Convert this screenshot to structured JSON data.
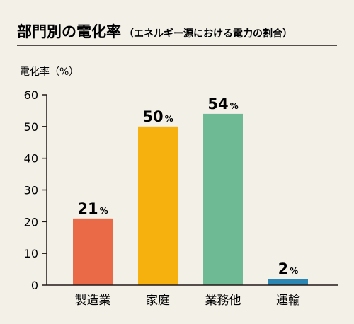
{
  "chart_data": {
    "type": "bar",
    "title": "部門別の電化率",
    "subtitle": "（エネルギー源における電力の割合）",
    "ylabel": "電化率（%）",
    "ylim": [
      0,
      60
    ],
    "yticks": [
      0,
      10,
      20,
      30,
      40,
      50,
      60
    ],
    "categories": [
      "製造業",
      "家庭",
      "業務他",
      "運輸"
    ],
    "values": [
      21,
      50,
      54,
      2
    ],
    "value_unit": "%",
    "colors": [
      "#ea6a47",
      "#f6b10f",
      "#6dba95",
      "#2b86b3"
    ],
    "grid": false
  }
}
